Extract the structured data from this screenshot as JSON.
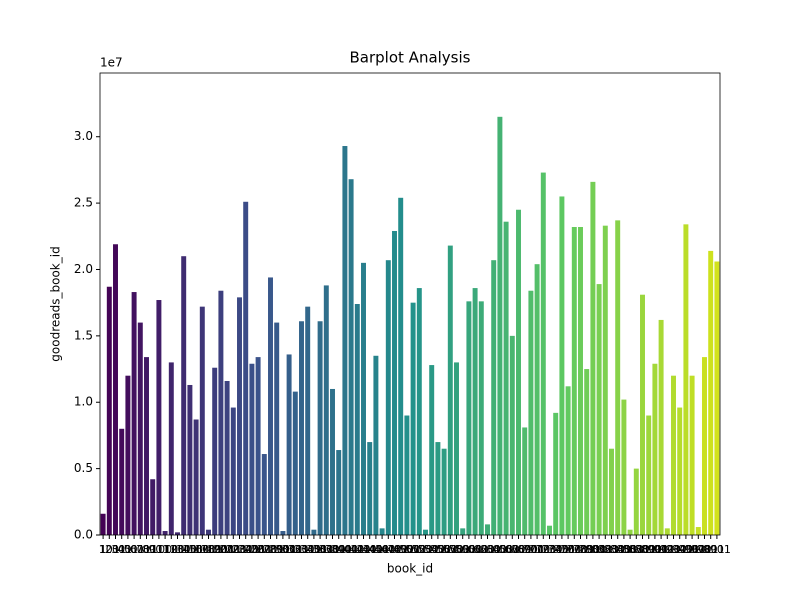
{
  "chart_data": {
    "type": "bar",
    "title": "Barplot Analysis",
    "x_label": "book_id",
    "y_label": "goodreads_book_id",
    "y_offset_label": "1e7",
    "categories": [
      1,
      101,
      201,
      301,
      401,
      501,
      601,
      701,
      801,
      901,
      1001,
      1101,
      1201,
      1301,
      1401,
      1501,
      1601,
      1701,
      1801,
      1901,
      2001,
      2101,
      2201,
      2301,
      2401,
      2501,
      2601,
      2701,
      2801,
      2901,
      3001,
      3101,
      3201,
      3301,
      3401,
      3501,
      3601,
      3701,
      3801,
      3901,
      4001,
      4101,
      4201,
      4301,
      4401,
      4501,
      4601,
      4701,
      4801,
      4901,
      5001,
      5101,
      5201,
      5301,
      5401,
      5501,
      5601,
      5701,
      5801,
      5901,
      6001,
      6101,
      6201,
      6301,
      6401,
      6501,
      6601,
      6701,
      6801,
      6901,
      7001,
      7101,
      7201,
      7301,
      7401,
      7501,
      7601,
      7701,
      7801,
      7901,
      8001,
      8101,
      8201,
      8301,
      8401,
      8501,
      8601,
      8701,
      8801,
      8901,
      9001,
      9101,
      9201,
      9301,
      9401,
      9501,
      9601,
      9701,
      9801,
      9901
    ],
    "values": [
      1600000,
      18700000,
      21900000,
      8000000,
      12000000,
      18300000,
      16000000,
      13400000,
      4200000,
      17700000,
      300000,
      13000000,
      200000,
      21000000,
      11300000,
      8700000,
      17200000,
      400000,
      12600000,
      18400000,
      11600000,
      9600000,
      17900000,
      25100000,
      12900000,
      13400000,
      6100000,
      19400000,
      16000000,
      300000,
      13600000,
      10800000,
      16100000,
      17200000,
      400000,
      16100000,
      18800000,
      11000000,
      6400000,
      29300000,
      26800000,
      17400000,
      20500000,
      7000000,
      13500000,
      500000,
      20700000,
      22900000,
      25400000,
      9000000,
      17500000,
      18600000,
      400000,
      12800000,
      7000000,
      6500000,
      21800000,
      13000000,
      500000,
      17600000,
      18600000,
      17600000,
      800000,
      20700000,
      31500000,
      23600000,
      15000000,
      24500000,
      8100000,
      18400000,
      20400000,
      27300000,
      700000,
      9200000,
      25500000,
      11200000,
      23200000,
      23200000,
      12500000,
      26600000,
      18900000,
      23300000,
      6500000,
      23700000,
      10200000,
      400000,
      5000000,
      18100000,
      9000000,
      12900000,
      16200000,
      500000,
      12000000,
      9600000,
      23400000,
      12000000,
      600000,
      13400000,
      21400000,
      20600000
    ],
    "palette": [
      "#440154",
      "#3b528b",
      "#21918c",
      "#5ec962",
      "#d2e21b"
    ],
    "ylim": [
      0,
      34800000
    ],
    "yticks": [
      {
        "value": 0,
        "label": "0.0"
      },
      {
        "value": 5000000,
        "label": "0.5"
      },
      {
        "value": 10000000,
        "label": "1.0"
      },
      {
        "value": 15000000,
        "label": "1.5"
      },
      {
        "value": 20000000,
        "label": "2.0"
      },
      {
        "value": 25000000,
        "label": "2.5"
      },
      {
        "value": 30000000,
        "label": "3.0"
      }
    ],
    "grid": false
  }
}
